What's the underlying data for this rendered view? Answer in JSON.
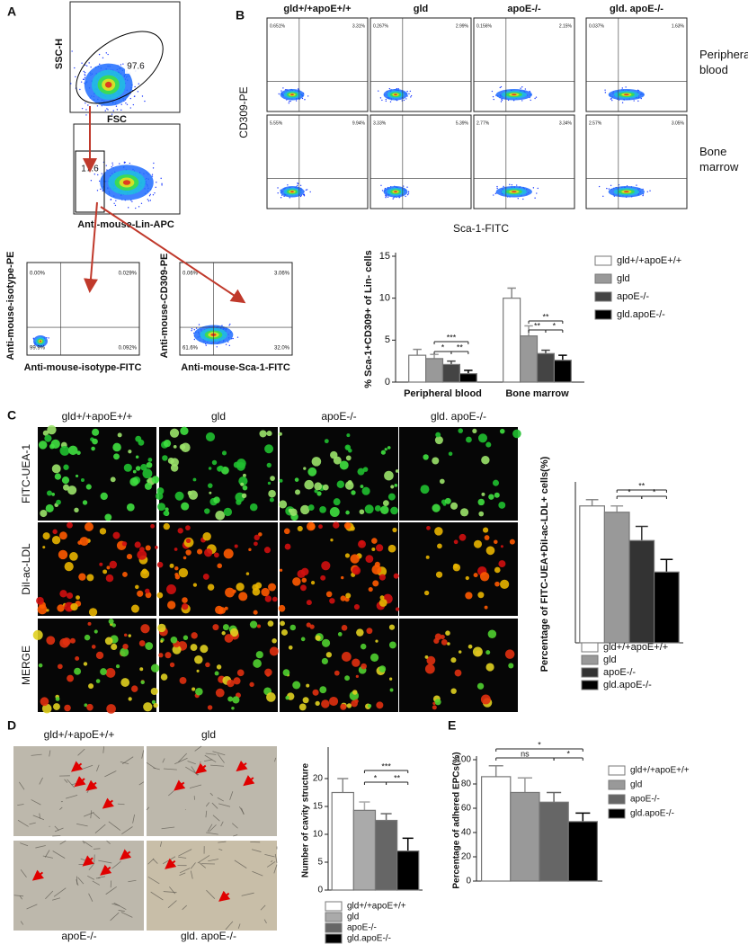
{
  "panel_letters": [
    "A",
    "B",
    "C",
    "D",
    "E"
  ],
  "panel_a": {
    "fsc_plot": {
      "y_label": "SSC-H",
      "x_label": "FSC",
      "gate": "97.6"
    },
    "lin_plot": {
      "x_label": "Anti-mouse-Lin-APC",
      "gate": "17.6"
    },
    "isotype_plot": {
      "y_label": "Anti-mouse-isotype-PE",
      "x_label": "Anti-mouse-isotype-FITC",
      "quadrants": [
        "0.00%",
        "0.029%",
        "0.092%",
        "99.9%"
      ]
    },
    "cd309_plot": {
      "y_label": "Anti-mouse-CD309-PE",
      "x_label": "Anti-mouse-Sca-1-FITC",
      "quadrants": [
        "0.06%",
        "3.06%",
        "32.0%",
        "61.6%"
      ]
    }
  },
  "panel_b": {
    "columns": [
      "gld+/+apoE+/+",
      "gld",
      "apoE-/-",
      "gld. apoE-/-"
    ],
    "rows": [
      "Peripheral blood",
      "Bone marrow"
    ],
    "y_label": "CD309-PE",
    "x_label": "Sca-1-FITC",
    "q1": [
      [
        "0.651%",
        "0.267%",
        "0.156%",
        "0.037%"
      ],
      [
        "5.55%",
        "3.33%",
        "2.77%",
        "2.57%"
      ]
    ],
    "q2": [
      [
        "3.31%",
        "2.99%",
        "2.15%",
        "1.63%"
      ],
      [
        "9.94%",
        "5.39%",
        "3.34%",
        "3.05%"
      ]
    ]
  },
  "panel_c": {
    "columns": [
      "gld+/+apoE+/+",
      "gld",
      "apoE-/-",
      "gld. apoE-/-"
    ],
    "rows": [
      "FITC-UEA-1",
      "DiI-ac-LDL",
      "MERGE"
    ]
  },
  "panel_d": {
    "labels": [
      "gld+/+apoE+/+",
      "gld",
      "apoE-/-",
      "gld. apoE-/-"
    ]
  },
  "chart_data": [
    {
      "type": "bar",
      "y_label": "% Sca-1+CD309+ of Lin- cells",
      "categories": [
        "Peripheral blood",
        "Bone marrow"
      ],
      "series": [
        {
          "name": "gld+/+apoE+/+",
          "color": "#ffffff",
          "values": [
            3.2,
            10
          ],
          "errors": [
            0.7,
            1.2
          ]
        },
        {
          "name": "gld",
          "color": "#999999",
          "values": [
            2.8,
            5.5
          ],
          "errors": [
            0.5,
            1.2
          ]
        },
        {
          "name": "apoE-/-",
          "color": "#444444",
          "values": [
            2.1,
            3.4
          ],
          "errors": [
            0.4,
            0.4
          ]
        },
        {
          "name": "gld.apoE-/-",
          "color": "#000000",
          "values": [
            1.0,
            2.6
          ],
          "errors": [
            0.4,
            0.6
          ]
        }
      ],
      "ylim": [
        0,
        15
      ],
      "yticks": [
        0,
        5,
        10,
        15
      ],
      "annotations": [
        "***",
        "*",
        "**",
        "**",
        "**",
        "*"
      ]
    },
    {
      "type": "bar",
      "y_label": "Percentage of FITC-UEA+DiI-ac-LDL+ cells(%)",
      "categories": [
        null
      ],
      "series": [
        {
          "name": "gld+/+apoE+/+",
          "color": "#ffffff",
          "values": [
            87
          ],
          "errors": [
            4
          ]
        },
        {
          "name": "gld",
          "color": "#999999",
          "values": [
            83
          ],
          "errors": [
            4
          ]
        },
        {
          "name": "apoE-/-",
          "color": "#333333",
          "values": [
            65
          ],
          "errors": [
            9
          ]
        },
        {
          "name": "gld.apoE-/-",
          "color": "#000000",
          "values": [
            45
          ],
          "errors": [
            8
          ]
        }
      ],
      "ylim": [
        0,
        100
      ],
      "annotations": [
        "**",
        "*",
        "*"
      ]
    },
    {
      "type": "bar",
      "y_label": "Number of  cavity structure",
      "categories": [
        null
      ],
      "series": [
        {
          "name": "gld+/+apoE+/+",
          "color": "#ffffff",
          "values": [
            17.5
          ],
          "errors": [
            2.5
          ]
        },
        {
          "name": "gld",
          "color": "#aaaaaa",
          "values": [
            14.3
          ],
          "errors": [
            1.5
          ]
        },
        {
          "name": "apoE-/-",
          "color": "#666666",
          "values": [
            12.5
          ],
          "errors": [
            1.2
          ]
        },
        {
          "name": "gld.apoE-/-",
          "color": "#000000",
          "values": [
            7
          ],
          "errors": [
            2.3
          ]
        }
      ],
      "ylim": [
        0,
        25
      ],
      "yticks": [
        0,
        5,
        10,
        15,
        20
      ],
      "annotations": [
        "***",
        "*",
        "**"
      ]
    },
    {
      "type": "bar",
      "y_label": "Percentage of adhered EPCs(%)",
      "categories": [
        null
      ],
      "series": [
        {
          "name": "gld+/+apoE+/+",
          "color": "#ffffff",
          "values": [
            86
          ],
          "errors": [
            9
          ]
        },
        {
          "name": "gld",
          "color": "#999999",
          "values": [
            73
          ],
          "errors": [
            12
          ]
        },
        {
          "name": "apoE-/-",
          "color": "#666666",
          "values": [
            65
          ],
          "errors": [
            8
          ]
        },
        {
          "name": "gld.apoE-/-",
          "color": "#000000",
          "values": [
            49
          ],
          "errors": [
            7
          ]
        }
      ],
      "ylim": [
        0,
        100
      ],
      "yticks": [
        0,
        20,
        40,
        60,
        80,
        100
      ],
      "annotations": [
        "*",
        "ns",
        "*"
      ]
    }
  ]
}
